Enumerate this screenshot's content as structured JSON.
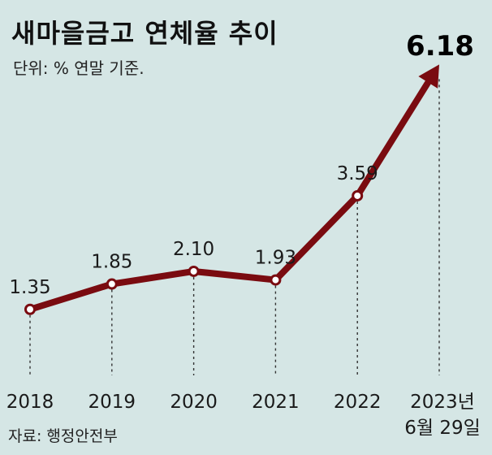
{
  "title": "새마을금고 연체율 추이",
  "subtitle": "단위: % 연말 기준.",
  "source": "자료: 행정안전부",
  "colors": {
    "line": "#7a0b10",
    "background": "#d5e6e5",
    "marker_fill": "#ffffff"
  },
  "chart_data": {
    "type": "line",
    "categories": [
      "2018",
      "2019",
      "2020",
      "2021",
      "2022",
      "2023년"
    ],
    "category_sublabels": [
      "",
      "",
      "",
      "",
      "",
      "6월 29일"
    ],
    "series": [
      {
        "values": [
          1.35,
          1.85,
          2.1,
          1.93,
          3.59,
          6.18
        ]
      }
    ],
    "value_labels": [
      "1.35",
      "1.85",
      "2.10",
      "1.93",
      "3.59",
      "6.18"
    ],
    "last_point_arrow": true,
    "ylim": [
      0,
      7
    ],
    "grid": false,
    "xlabel": "",
    "ylabel": ""
  }
}
